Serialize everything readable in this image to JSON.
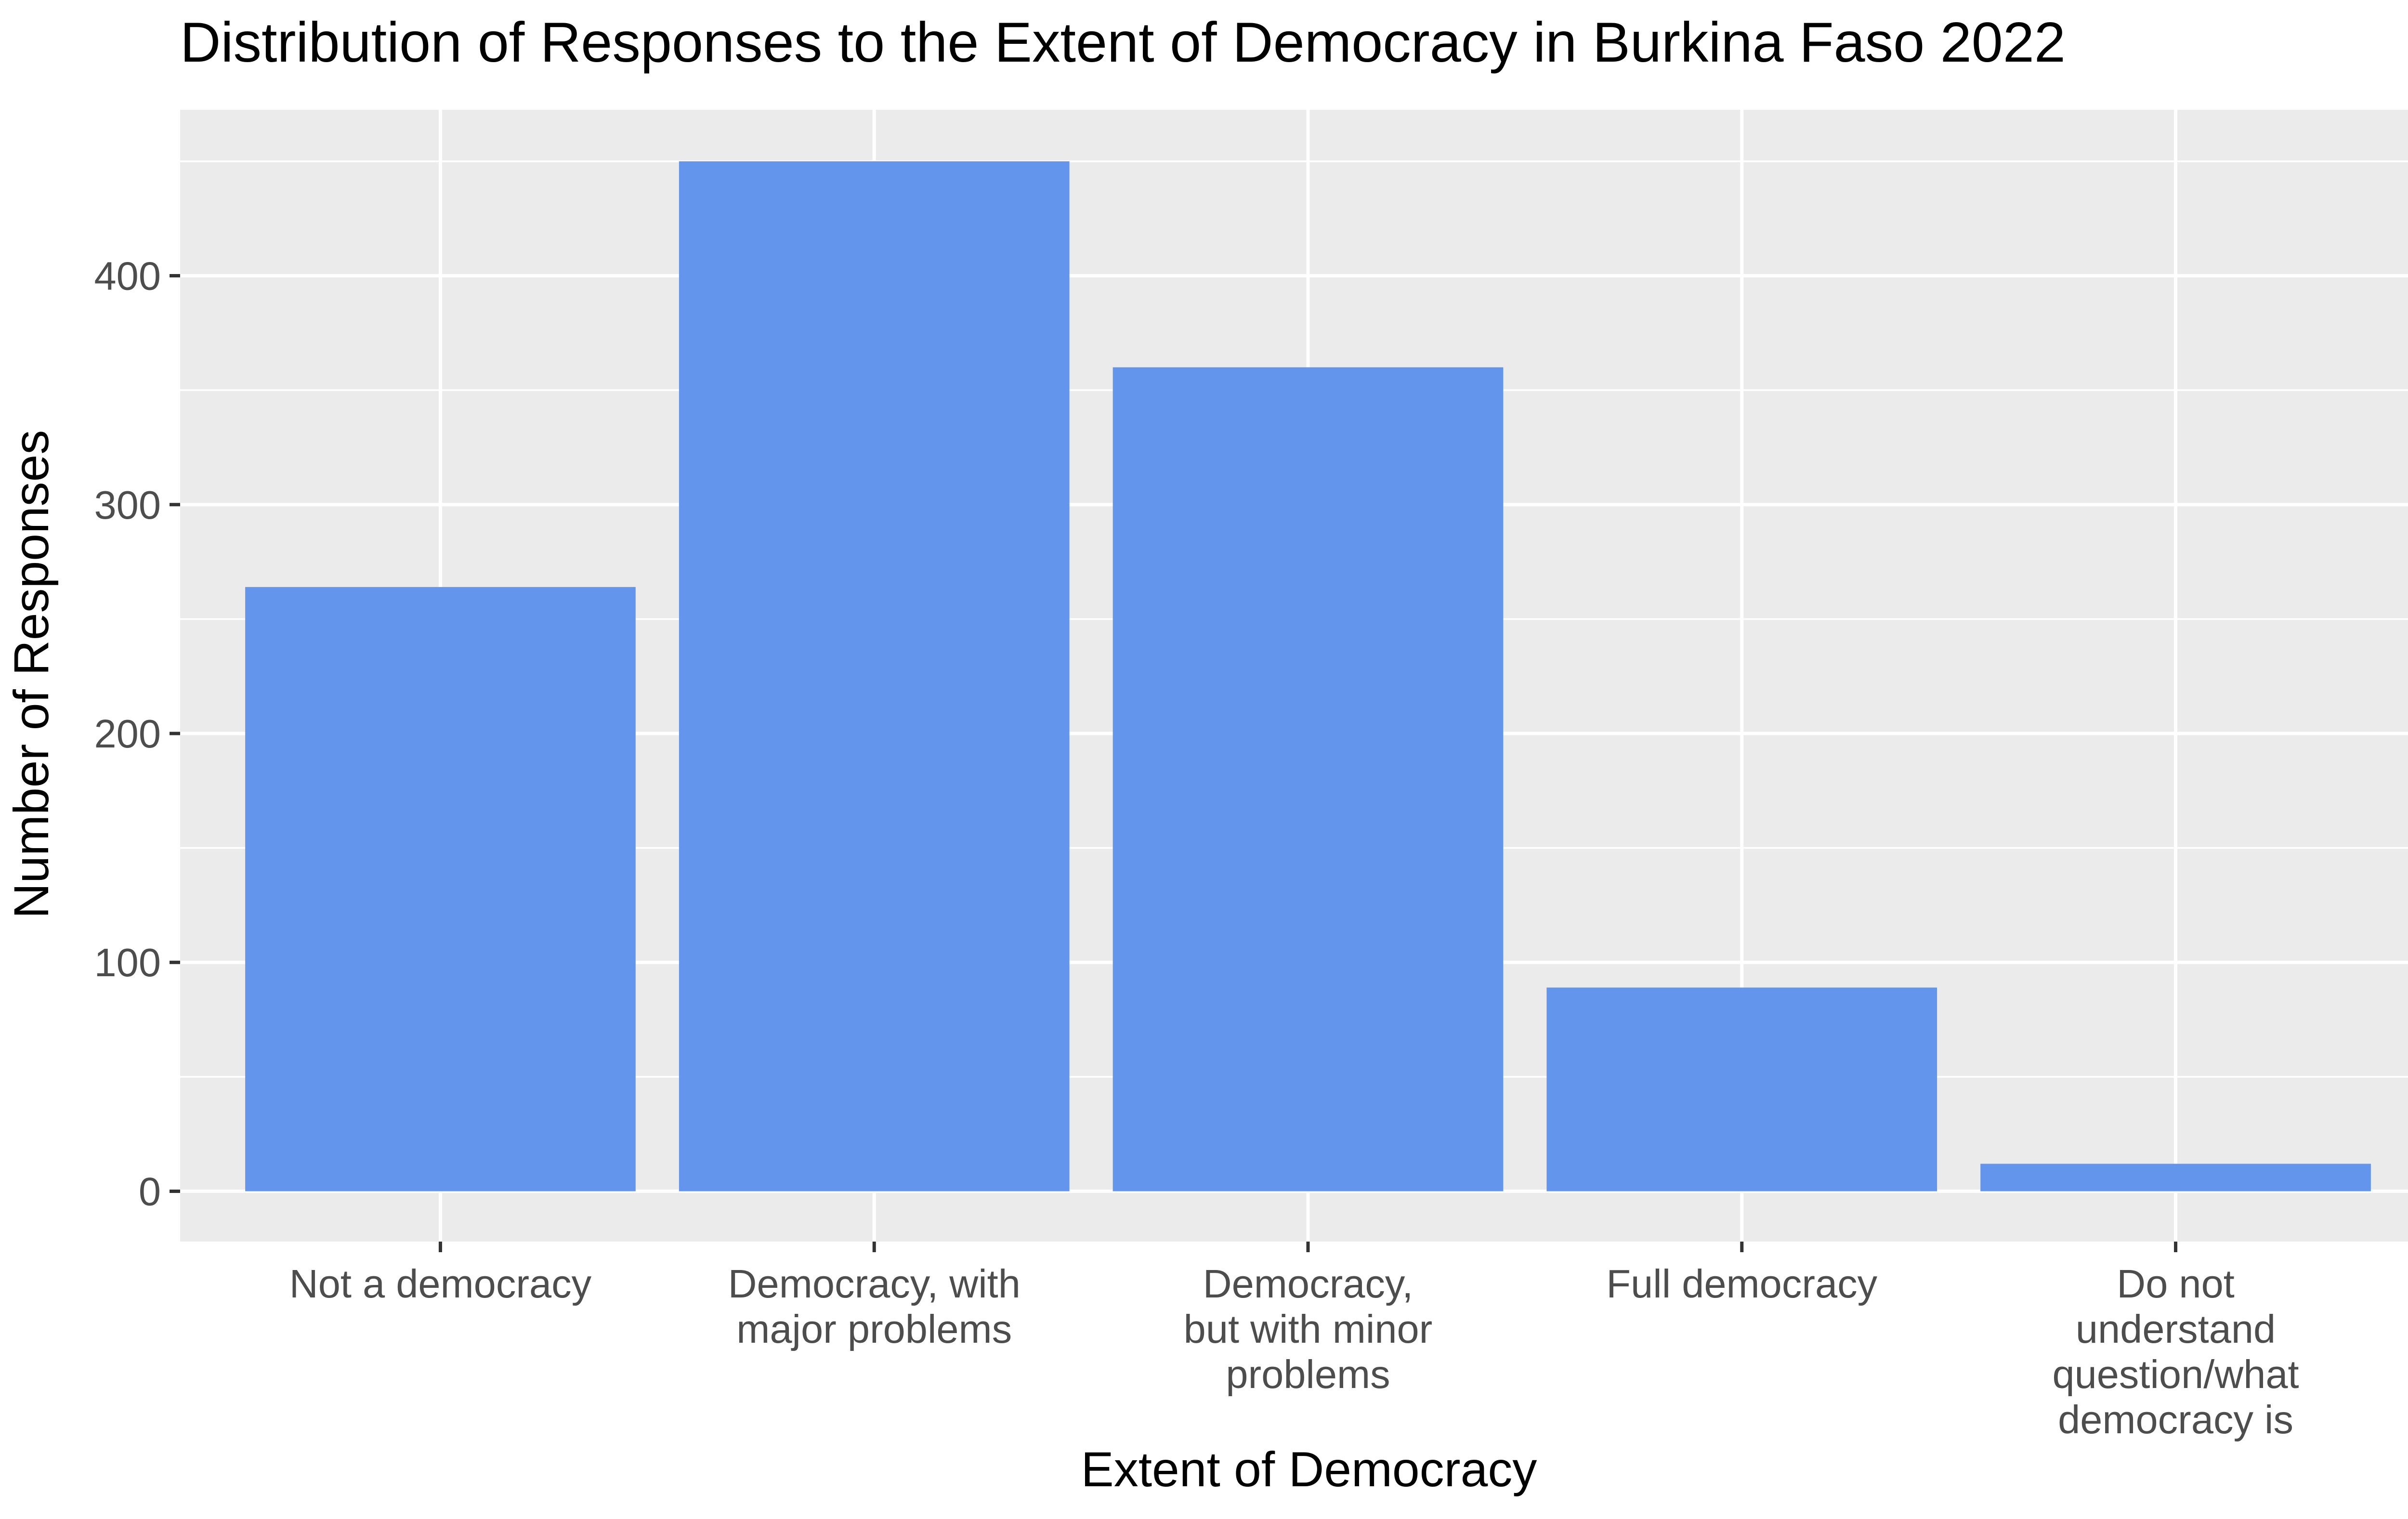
{
  "chart_data": {
    "type": "bar",
    "title": "Distribution of Responses to the Extent of Democracy in Burkina Faso 2022",
    "xlabel": "Extent of Democracy",
    "ylabel": "Number of Responses",
    "categories": [
      [
        "Not a democracy"
      ],
      [
        "Democracy, with",
        "major problems"
      ],
      [
        "Democracy,",
        "but with minor",
        "problems"
      ],
      [
        "Full democracy"
      ],
      [
        "Do not",
        "understand",
        "question/what",
        "democracy is"
      ]
    ],
    "values": [
      264,
      450,
      360,
      89,
      12
    ],
    "ylim": [
      -22,
      472.5
    ],
    "yticks": [
      0,
      100,
      200,
      300,
      400
    ],
    "grid": true,
    "bar_color": "#6495ED",
    "panel_color": "#EBEBEB"
  }
}
